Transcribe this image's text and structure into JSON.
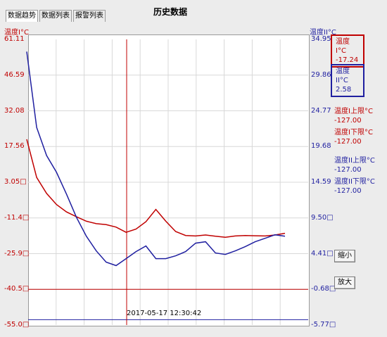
{
  "title": "历史数据",
  "tabs": [
    {
      "label": "数据趋势",
      "active": true
    },
    {
      "label": "数据列表",
      "active": false
    },
    {
      "label": "报警列表",
      "active": false
    }
  ],
  "axes": {
    "left_title": "温度I°C",
    "right_title": "温度II°C",
    "left_ticks": [
      "61.11",
      "46.59",
      "32.08",
      "17.56",
      "3.05□",
      "-11.4□",
      "-25.9□",
      "-40.5□",
      "-55.0□"
    ],
    "right_ticks": [
      "34.95",
      "29.86",
      "24.77",
      "19.68",
      "14.59",
      "9.50□",
      "4.41□",
      "-0.68□",
      "-5.77□"
    ],
    "cursor_time": "2017-05-17 12:30:42"
  },
  "readouts": {
    "temp1": {
      "label": "温度I°C",
      "value": "-17.24"
    },
    "temp2": {
      "label": "温度II°C",
      "value": "2.58"
    }
  },
  "limits": {
    "temp1_upper": {
      "label": "温度I上限°C",
      "value": "-127.00"
    },
    "temp1_lower": {
      "label": "温度I下限°C",
      "value": "-127.00"
    },
    "temp2_upper": {
      "label": "温度II上限°C",
      "value": "-127.00"
    },
    "temp2_lower": {
      "label": "温度II下限°C",
      "value": "-127.00"
    }
  },
  "buttons": {
    "zoom_out": "缩小",
    "zoom_in": "放大"
  },
  "colors": {
    "temp1": "#c00000",
    "temp2": "#1f1fa0",
    "grid": "#d8d8d8",
    "cursor": "#c00000"
  },
  "chart_data": {
    "type": "line",
    "y_left_range": [
      -55.0,
      61.11
    ],
    "y_right_range": [
      -5.77,
      34.95
    ],
    "reference_lines": {
      "left_value": -40.5,
      "right_value": -5.0
    },
    "series": [
      {
        "name": "温度I°C",
        "axis": "left",
        "values": [
          20.5,
          5.0,
          -1.5,
          -6.0,
          -9.0,
          -11.0,
          -12.8,
          -13.8,
          -14.2,
          -15.2,
          -17.3,
          -16.0,
          -13.0,
          -8.0,
          -12.8,
          -17.0,
          -18.6,
          -18.8,
          -18.4,
          -18.9,
          -19.3,
          -18.8,
          -18.6,
          -18.7,
          -18.8,
          -18.4,
          -17.7
        ]
      },
      {
        "name": "温度II°C",
        "axis": "right",
        "values": [
          33.2,
          22.4,
          18.4,
          16.0,
          12.9,
          9.6,
          6.9,
          4.8,
          3.2,
          2.7,
          3.7,
          4.7,
          5.5,
          3.7,
          3.7,
          4.1,
          4.7,
          5.9,
          6.1,
          4.5,
          4.3,
          4.8,
          5.4,
          6.1,
          6.6,
          7.1,
          6.9
        ]
      }
    ]
  }
}
